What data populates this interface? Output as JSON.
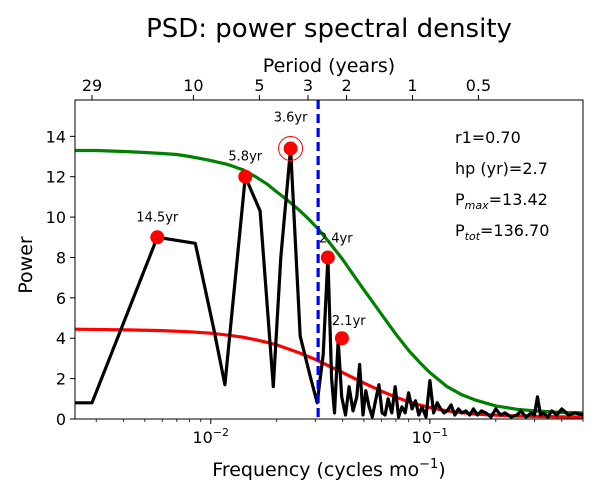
{
  "chart_data": {
    "type": "line",
    "title": "PSD: power spectral density",
    "xlabel": "Frequency (cycles mo",
    "xlabel_sup": "−1",
    "xlabel_close": ")",
    "ylabel": "Power",
    "top_xlabel": "Period (years)",
    "xscale": "log",
    "xlim": [
      0.0024,
      0.5
    ],
    "ylim": [
      0,
      15.8
    ],
    "yticks": [
      0,
      2,
      4,
      6,
      8,
      10,
      12,
      14
    ],
    "xticks": [
      {
        "value": 0.01,
        "base": "10",
        "exp": "−2"
      },
      {
        "value": 0.1,
        "base": "10",
        "exp": "−1"
      }
    ],
    "top_ticks": [
      {
        "label": "29",
        "freq": 0.00287
      },
      {
        "label": "10",
        "freq": 0.00833
      },
      {
        "label": "5",
        "freq": 0.01667
      },
      {
        "label": "3",
        "freq": 0.02778
      },
      {
        "label": "2",
        "freq": 0.04167
      },
      {
        "label": "1",
        "freq": 0.08333
      },
      {
        "label": "0.5",
        "freq": 0.16667
      }
    ],
    "grid": false,
    "series": [
      {
        "color": "#000000",
        "x": [
          0.0024,
          0.00287,
          0.0057,
          0.0085,
          0.0103,
          0.0116,
          0.01437,
          0.0168,
          0.0193,
          0.02088,
          0.02313,
          0.0256,
          0.0286,
          0.0306,
          0.0326,
          0.03423,
          0.0356,
          0.0367,
          0.03815,
          0.0396,
          0.0412,
          0.0428,
          0.0446,
          0.0464,
          0.0478,
          0.0495,
          0.051,
          0.0528,
          0.0546,
          0.0565,
          0.0585,
          0.0605,
          0.0625,
          0.0645,
          0.067,
          0.0695,
          0.072,
          0.0745,
          0.0772,
          0.08,
          0.083,
          0.086,
          0.089,
          0.092,
          0.096,
          0.1,
          0.104,
          0.108,
          0.112,
          0.116,
          0.12,
          0.125,
          0.13,
          0.135,
          0.14,
          0.146,
          0.152,
          0.158,
          0.165,
          0.172,
          0.18,
          0.19,
          0.2,
          0.21,
          0.22,
          0.235,
          0.25,
          0.26,
          0.275,
          0.29,
          0.3,
          0.31,
          0.32,
          0.33,
          0.345,
          0.36,
          0.38,
          0.4,
          0.43,
          0.46,
          0.5
        ],
        "y": [
          0.8,
          0.8,
          9.0,
          8.7,
          4.5,
          1.7,
          12.0,
          10.3,
          1.6,
          8.0,
          13.4,
          4.1,
          2.0,
          0.8,
          3.2,
          8.0,
          2.0,
          0.3,
          3.9,
          1.1,
          0.2,
          1.6,
          0.4,
          1.1,
          2.7,
          0.2,
          1.4,
          0.6,
          0.1,
          0.9,
          1.7,
          0.3,
          0.2,
          1.0,
          0.3,
          1.6,
          0.1,
          0.6,
          0.3,
          1.3,
          0.5,
          0.9,
          0.2,
          0.6,
          0.1,
          1.9,
          0.3,
          0.8,
          0.5,
          0.3,
          0.4,
          0.7,
          0.2,
          0.5,
          0.3,
          0.4,
          0.2,
          0.5,
          0.2,
          0.4,
          0.3,
          0.1,
          0.5,
          0.2,
          0.3,
          0.1,
          0.2,
          0.4,
          0.1,
          0.3,
          0.2,
          1.1,
          0.2,
          0.3,
          0.1,
          0.4,
          0.2,
          0.5,
          0.2,
          0.3,
          0.2
        ]
      },
      {
        "color": "#008000",
        "x": [
          0.0024,
          0.003,
          0.004,
          0.005,
          0.006,
          0.007,
          0.008,
          0.009,
          0.01,
          0.012,
          0.014,
          0.016,
          0.018,
          0.02,
          0.022,
          0.025,
          0.028,
          0.031,
          0.035,
          0.04,
          0.045,
          0.05,
          0.06,
          0.07,
          0.08,
          0.09,
          0.1,
          0.12,
          0.14,
          0.16,
          0.2,
          0.25,
          0.3,
          0.4,
          0.5
        ],
        "y": [
          13.3,
          13.3,
          13.25,
          13.2,
          13.15,
          13.1,
          13.0,
          12.9,
          12.8,
          12.6,
          12.35,
          12.0,
          11.65,
          11.25,
          10.9,
          10.4,
          9.9,
          9.4,
          8.7,
          7.9,
          7.1,
          6.4,
          5.2,
          4.2,
          3.4,
          2.8,
          2.3,
          1.6,
          1.2,
          0.95,
          0.65,
          0.48,
          0.4,
          0.32,
          0.3
        ]
      },
      {
        "color": "#ff0000",
        "x": [
          0.0024,
          0.004,
          0.006,
          0.008,
          0.01,
          0.012,
          0.014,
          0.016,
          0.018,
          0.02,
          0.025,
          0.03,
          0.035,
          0.04,
          0.045,
          0.05,
          0.06,
          0.07,
          0.08,
          0.09,
          0.1,
          0.12,
          0.14,
          0.16,
          0.2,
          0.25,
          0.3,
          0.4,
          0.5
        ],
        "y": [
          4.45,
          4.42,
          4.38,
          4.32,
          4.25,
          4.15,
          4.05,
          3.93,
          3.8,
          3.67,
          3.3,
          2.95,
          2.6,
          2.3,
          2.02,
          1.78,
          1.38,
          1.08,
          0.86,
          0.69,
          0.57,
          0.4,
          0.31,
          0.25,
          0.19,
          0.15,
          0.13,
          0.11,
          0.1
        ]
      }
    ],
    "vline": {
      "x": 0.0309,
      "color": "#0000ff",
      "style": "dashed"
    },
    "peaks": [
      {
        "x": 0.0057,
        "y": 9.0,
        "label": "14.5yr",
        "circled": false
      },
      {
        "x": 0.01437,
        "y": 12.0,
        "label": "5.8yr",
        "circled": false
      },
      {
        "x": 0.02313,
        "y": 13.4,
        "label": "3.6yr",
        "circled": true
      },
      {
        "x": 0.03423,
        "y": 8.0,
        "label": "2.4yr",
        "circled": false
      },
      {
        "x": 0.03968,
        "y": 4.0,
        "label": "2.1yr",
        "circled": false
      }
    ],
    "stats": [
      {
        "main": "r1=0.70",
        "sub": "",
        "tail": ""
      },
      {
        "main": "hp (yr)=2.7",
        "sub": "",
        "tail": ""
      },
      {
        "main": "P",
        "sub": "max",
        "tail": "=13.42"
      },
      {
        "main": "P",
        "sub": "tot",
        "tail": "=136.70"
      }
    ]
  }
}
